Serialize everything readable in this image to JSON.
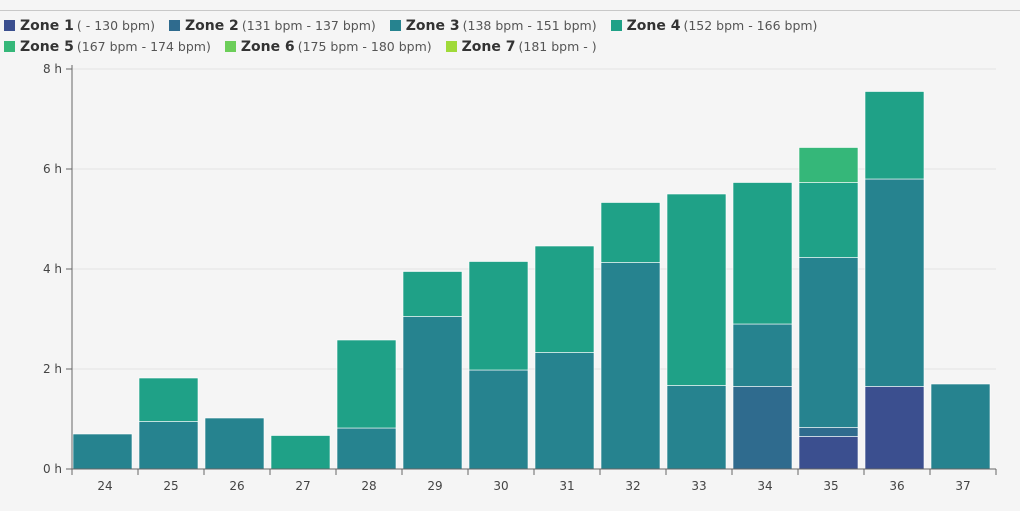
{
  "chart_data": {
    "type": "bar",
    "stacked": true,
    "title": "",
    "xlabel": "",
    "ylabel": "",
    "categories": [
      "24",
      "25",
      "26",
      "27",
      "28",
      "29",
      "30",
      "31",
      "32",
      "33",
      "34",
      "35",
      "36",
      "37"
    ],
    "ylim": [
      0,
      8
    ],
    "yticks": [
      0,
      2,
      4,
      6,
      8
    ],
    "ytick_labels": [
      "0 h",
      "2 h",
      "4 h",
      "6 h",
      "8 h"
    ],
    "series": [
      {
        "name": "Zone 1",
        "range": "( - 130 bpm)",
        "color": "#3b4f8f",
        "values": [
          0,
          0,
          0,
          0,
          0,
          0,
          0,
          0,
          0,
          0,
          0,
          0.65,
          1.65,
          0
        ]
      },
      {
        "name": "Zone 2",
        "range": "(131 bpm - 137 bpm)",
        "color": "#2f6b8e",
        "values": [
          0,
          0,
          0,
          0,
          0,
          0,
          0,
          0,
          0,
          0,
          1.65,
          0.18,
          0,
          0
        ]
      },
      {
        "name": "Zone 3",
        "range": "(138 bpm - 151 bpm)",
        "color": "#26838f",
        "values": [
          0.7,
          0.95,
          1.02,
          0,
          0.82,
          3.05,
          1.98,
          2.33,
          4.13,
          1.67,
          1.25,
          3.4,
          4.15,
          1.7
        ]
      },
      {
        "name": "Zone 4",
        "range": "(152 bpm - 166 bpm)",
        "color": "#1fa187",
        "values": [
          0,
          0.87,
          0,
          0.67,
          1.76,
          0.9,
          2.17,
          2.13,
          1.2,
          3.83,
          2.83,
          1.5,
          1.75,
          0
        ]
      },
      {
        "name": "Zone 5",
        "range": "(167 bpm - 174 bpm)",
        "color": "#35b779",
        "values": [
          0,
          0,
          0,
          0,
          0,
          0,
          0,
          0,
          0,
          0,
          0,
          0.7,
          0,
          0
        ]
      },
      {
        "name": "Zone 6",
        "range": "(175 bpm - 180 bpm)",
        "color": "#6cce59",
        "values": [
          0,
          0,
          0,
          0,
          0,
          0,
          0,
          0,
          0,
          0,
          0,
          0,
          0,
          0
        ]
      },
      {
        "name": "Zone 7",
        "range": "(181 bpm - )",
        "color": "#a0da39",
        "values": [
          0,
          0,
          0,
          0,
          0,
          0,
          0,
          0,
          0,
          0,
          0,
          0,
          0,
          0
        ]
      }
    ]
  }
}
